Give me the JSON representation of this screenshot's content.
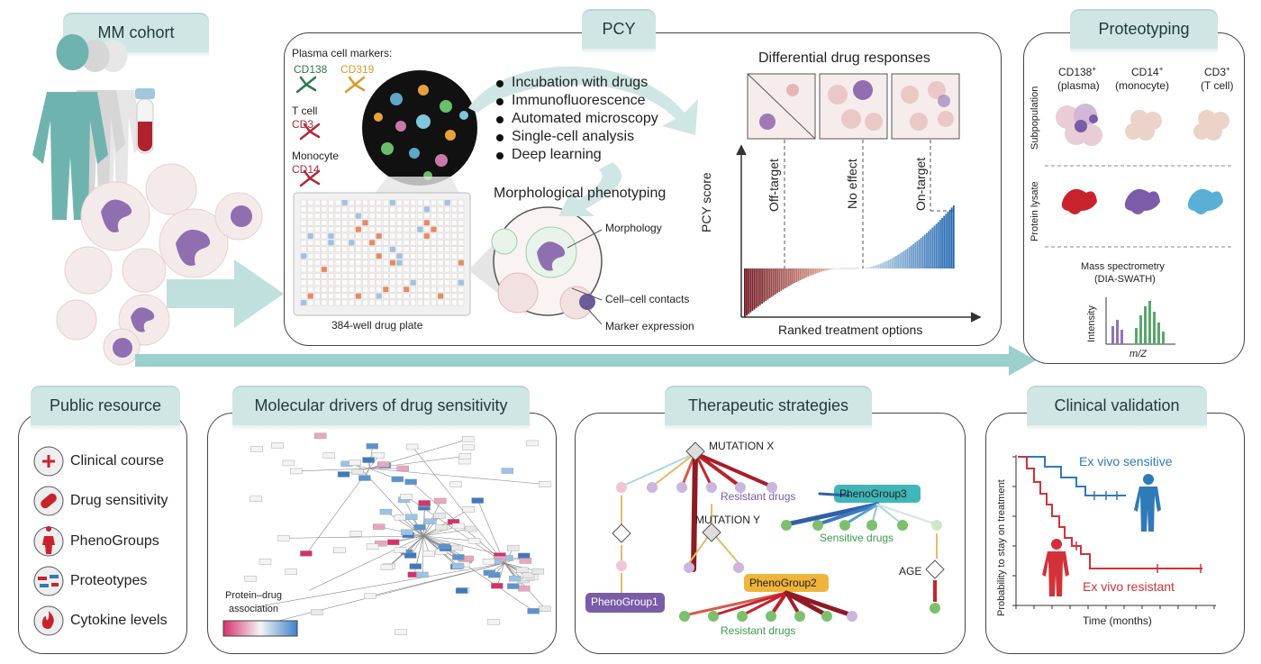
{
  "cohort": {
    "title": "MM cohort"
  },
  "pcy": {
    "title": "PCY",
    "markers_heading": "Plasma cell markers:",
    "cd138": "CD138",
    "cd319": "CD319",
    "tcell": "T cell",
    "cd3": "CD3",
    "monocyte": "Monocyte",
    "cd14": "CD14",
    "plate_label": "384-well drug plate",
    "bullets": [
      "Incubation with drugs",
      "Immunofluorescence",
      "Automated microscopy",
      "Single-cell analysis",
      "Deep learning"
    ],
    "morph_title": "Morphological phenotyping",
    "callouts": [
      "Morphology",
      "Cell–cell contacts",
      "Marker expression"
    ],
    "diff_title": "Differential drug responses",
    "y_label": "PCY score",
    "x_label": "Ranked treatment options",
    "zones": [
      "Off-target",
      "No effect",
      "On-target"
    ]
  },
  "proteo": {
    "title": "Proteotyping",
    "col1": "CD138",
    "col1_sub": "(plasma)",
    "col2": "CD14",
    "col2_sub": "(monocyte)",
    "col3": "CD3",
    "col3_sub": "(T cell)",
    "sup": "+",
    "row1": "Subpopulation",
    "row2": "Protein lysate",
    "ms_title": "Mass spectrometry",
    "ms_sub": "(DIA-SWATH)",
    "intensity": "Intensity",
    "mz": "m/Z"
  },
  "public": {
    "title": "Public resource",
    "items": [
      "Clinical course",
      "Drug sensitivity",
      "PhenoGroups",
      "Proteotypes",
      "Cytokine levels"
    ]
  },
  "molecular": {
    "title": "Molecular drivers of drug sensitivity",
    "legend_title": "Protein–drug\nassociation",
    "legend_line1": "Protein–drug",
    "legend_line2": "association"
  },
  "therapeutic": {
    "title": "Therapeutic strategies",
    "mutation_x": "MUTATION X",
    "mutation_y": "MUTATION Y",
    "resistant1": "Resistant drugs",
    "resistant2": "Resistant drugs",
    "sensitive": "Sensitive drugs",
    "pheno1": "PhenoGroup1",
    "pheno2": "PhenoGroup2",
    "pheno3": "PhenoGroup3",
    "age": "AGE"
  },
  "clinical": {
    "title": "Clinical validation",
    "y_label": "Probability to stay on treatment",
    "x_label": "Time (months)",
    "sensitive": "Ex vivo sensitive",
    "resistant": "Ex vivo resistant",
    "sensitive_color": "#2f7ab8",
    "resistant_color": "#d2313a"
  },
  "colors": {
    "teal": "#8ec9c6",
    "tab_bg": "#cfe6e4",
    "red": "#c8232c",
    "purple": "#7a5ca8",
    "green": "#3d8a4f",
    "orange": "#e08a2a",
    "blue": "#2f7ab8"
  }
}
